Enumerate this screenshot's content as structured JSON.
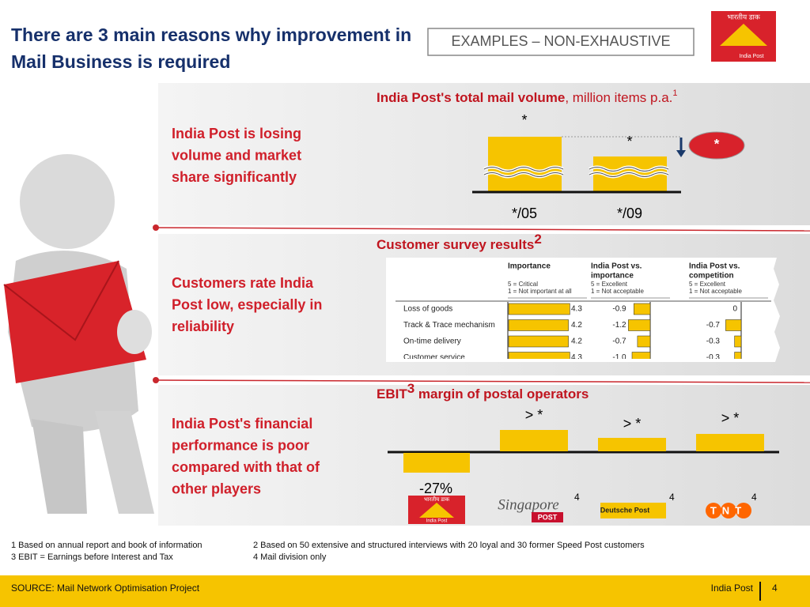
{
  "header": {
    "title_lines": [
      "There are 3 main reasons why improvement in",
      "Mail Business is required"
    ],
    "tag": "EXAMPLES – NON-EXHAUSTIVE",
    "logo": {
      "script": "भारतीय डाक",
      "name": "India Post"
    }
  },
  "sections": [
    {
      "reason_lines": [
        "India Post is losing",
        "volume and market",
        "share significantly"
      ],
      "chart_title": "India Post's total mail volume",
      "chart_unit": ", million items p.a.",
      "chart_note": "1",
      "bar_labels": [
        "*",
        "*"
      ],
      "categories": [
        "*/05",
        "*/09"
      ],
      "change": "*"
    },
    {
      "reason_lines": [
        "Customers rate India",
        "Post low, especially in",
        "reliability"
      ],
      "chart_title": "Customer survey results",
      "chart_note": "2",
      "table": {
        "columns": [
          {
            "title": [
              "Importance"
            ],
            "scale": [
              "5 = Critical",
              "1 = Not important at all"
            ]
          },
          {
            "title": [
              "India Post vs.",
              "importance"
            ],
            "scale": [
              "5 = Excellent",
              "1 = Not acceptable"
            ]
          },
          {
            "title": [
              "India Post vs.",
              "competition"
            ],
            "scale": [
              "5 = Excellent",
              "1 = Not acceptable"
            ]
          }
        ],
        "rows": [
          [
            "Loss of goods",
            "4.3",
            "-0.9",
            "0"
          ],
          [
            "Track & Trace mechanism",
            "4.2",
            "-1.2",
            "-0.7"
          ],
          [
            "On-time delivery",
            "4.2",
            "-0.7",
            "-0.3"
          ],
          [
            "Customer service",
            "4.3",
            "-1.0",
            "-0.3"
          ]
        ]
      }
    },
    {
      "reason_lines": [
        "India Post's financial",
        "performance is poor",
        "compared with that of",
        "other players"
      ],
      "chart_title_pre": "EBIT",
      "chart_note": "3",
      "chart_title": " margin of postal operators",
      "operators": [
        {
          "label": "-27%",
          "logo": [
            "भारतीय डाक",
            "India Post"
          ]
        },
        {
          "label": "> *",
          "logo": [
            "Singapore",
            "POST"
          ],
          "note": "4"
        },
        {
          "label": "> *",
          "logo": [
            "Deutsche Post"
          ],
          "note": "4"
        },
        {
          "label": "> *",
          "logo": [
            "TNT"
          ],
          "note": "4"
        }
      ]
    }
  ],
  "footnotes": [
    "1  Based on annual report and book of information",
    "2  Based on 50 extensive and structured interviews with 20 loyal and 30 former Speed Post customers",
    "3  EBIT = Earnings before Interest and Tax",
    "4  Mail division only"
  ],
  "footer": {
    "source": "SOURCE: Mail Network Optimisation Project",
    "brand": "India Post",
    "page": "4"
  }
}
